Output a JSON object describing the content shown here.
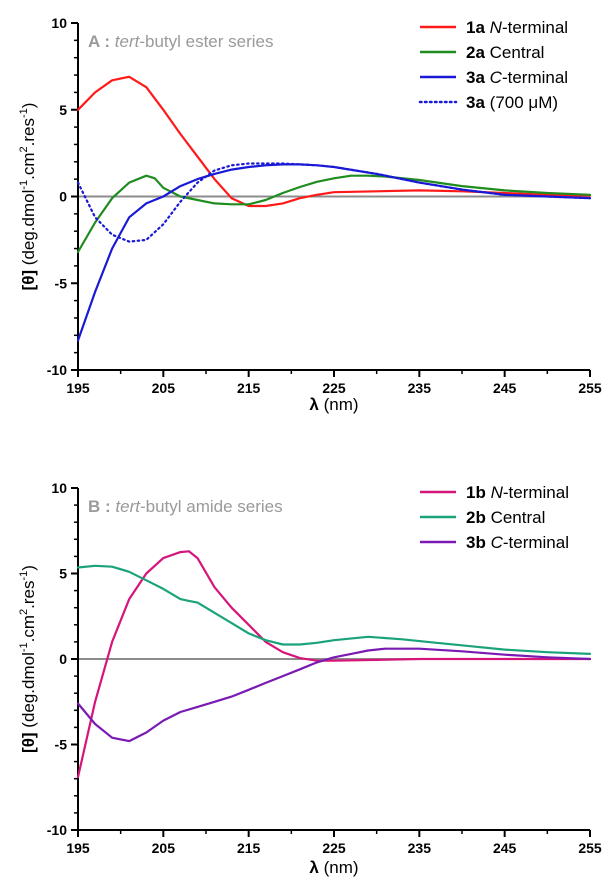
{
  "chart_data": [
    {
      "type": "line",
      "panel_letter": "A",
      "title_emphasis": "tert",
      "title_rest": "-butyl ester series",
      "xlabel_symbol": "λ",
      "xlabel_unit": "(nm)",
      "ylabel_symbol": "[θ]",
      "ylabel_unit": "(deg.dmol",
      "ylabel_sup1": "-1",
      "ylabel_mid": ".cm",
      "ylabel_sup2": "2",
      "ylabel_mid2": ".res",
      "ylabel_sup3": "-1",
      "ylabel_end": ")",
      "xlim": [
        195,
        255
      ],
      "ylim": [
        -10,
        10
      ],
      "xticks": [
        "195",
        "205",
        "215",
        "225",
        "235",
        "245",
        "255"
      ],
      "yticks": [
        "-10",
        "-5",
        "0",
        "5",
        "10"
      ],
      "zero_line": true,
      "legend_position": "top-right",
      "series": [
        {
          "name_bold": "1a",
          "name_italic": "N",
          "name_rest": "-terminal",
          "color": "#ff1a1a",
          "dash": "solid",
          "x": [
            195,
            197,
            199,
            201,
            203,
            205,
            207,
            209,
            211,
            213,
            215,
            217,
            219,
            221,
            223,
            225,
            230,
            235,
            240,
            245,
            250,
            255
          ],
          "y": [
            5.0,
            6.0,
            6.7,
            6.9,
            6.3,
            5.0,
            3.6,
            2.3,
            1.0,
            -0.1,
            -0.55,
            -0.55,
            -0.4,
            -0.1,
            0.1,
            0.25,
            0.3,
            0.35,
            0.3,
            0.2,
            0.1,
            0.05
          ]
        },
        {
          "name_bold": "2a",
          "name_italic": "",
          "name_rest": "Central",
          "color": "#1f8c1f",
          "dash": "solid",
          "x": [
            195,
            197,
            199,
            201,
            203,
            204,
            205,
            207,
            209,
            211,
            213,
            215,
            217,
            219,
            221,
            223,
            225,
            227,
            229,
            231,
            235,
            240,
            245,
            250,
            255
          ],
          "y": [
            -3.2,
            -1.5,
            -0.1,
            0.8,
            1.2,
            1.05,
            0.5,
            0.0,
            -0.2,
            -0.4,
            -0.45,
            -0.45,
            -0.2,
            0.2,
            0.55,
            0.85,
            1.05,
            1.2,
            1.2,
            1.15,
            0.95,
            0.6,
            0.35,
            0.2,
            0.1
          ]
        },
        {
          "name_bold": "3a",
          "name_italic": "C",
          "name_rest": "-terminal",
          "color": "#1a1ad6",
          "dash": "solid",
          "x": [
            195,
            197,
            199,
            201,
            203,
            205,
            207,
            209,
            211,
            213,
            215,
            217,
            219,
            221,
            223,
            225,
            230,
            235,
            240,
            245,
            250,
            255
          ],
          "y": [
            -8.3,
            -5.5,
            -3.0,
            -1.2,
            -0.4,
            0.0,
            0.6,
            1.0,
            1.3,
            1.55,
            1.7,
            1.8,
            1.85,
            1.85,
            1.8,
            1.7,
            1.3,
            0.8,
            0.4,
            0.1,
            0.0,
            -0.1
          ]
        },
        {
          "name_bold": "3a",
          "name_italic": "",
          "name_rest": "(700 μM)",
          "color": "#1a1ad6",
          "dash": "dotted",
          "x": [
            195,
            197,
            199,
            201,
            203,
            205,
            207,
            209,
            211,
            213,
            215,
            217,
            219,
            221,
            223,
            225,
            230,
            235,
            240,
            245,
            250,
            255
          ],
          "y": [
            0.8,
            -1.2,
            -2.2,
            -2.6,
            -2.5,
            -1.6,
            -0.3,
            0.8,
            1.5,
            1.8,
            1.9,
            1.9,
            1.9,
            1.85,
            1.8,
            1.7,
            1.3,
            0.8,
            0.4,
            0.1,
            0.0,
            -0.1
          ]
        }
      ]
    },
    {
      "type": "line",
      "panel_letter": "B",
      "title_emphasis": "tert",
      "title_rest": "-butyl amide series",
      "xlabel_symbol": "λ",
      "xlabel_unit": "(nm)",
      "ylabel_symbol": "[θ]",
      "ylabel_unit": "(deg.dmol",
      "ylabel_sup1": "-1",
      "ylabel_mid": ".cm",
      "ylabel_sup2": "2",
      "ylabel_mid2": ".res",
      "ylabel_sup3": "-1",
      "ylabel_end": ")",
      "xlim": [
        195,
        255
      ],
      "ylim": [
        -10,
        10
      ],
      "xticks": [
        "195",
        "205",
        "215",
        "225",
        "235",
        "245",
        "255"
      ],
      "yticks": [
        "-10",
        "-5",
        "0",
        "5",
        "10"
      ],
      "zero_line": true,
      "legend_position": "top-right",
      "series": [
        {
          "name_bold": "1b",
          "name_italic": "N",
          "name_rest": "-terminal",
          "color": "#d6157a",
          "dash": "solid",
          "x": [
            195,
            197,
            199,
            201,
            203,
            205,
            207,
            208,
            209,
            211,
            213,
            215,
            217,
            219,
            221,
            223,
            225,
            230,
            235,
            240,
            245,
            250,
            255
          ],
          "y": [
            -6.9,
            -2.5,
            1.0,
            3.5,
            5.0,
            5.9,
            6.25,
            6.3,
            5.9,
            4.2,
            3.0,
            2.0,
            1.0,
            0.4,
            0.05,
            -0.1,
            -0.1,
            -0.05,
            0.0,
            0.0,
            0.0,
            0.0,
            0.0
          ]
        },
        {
          "name_bold": "2b",
          "name_italic": "",
          "name_rest": "Central",
          "color": "#1aa37a",
          "dash": "solid",
          "x": [
            195,
            197,
            199,
            201,
            203,
            205,
            207,
            208,
            209,
            211,
            213,
            215,
            217,
            219,
            221,
            223,
            225,
            229,
            233,
            237,
            241,
            245,
            250,
            255
          ],
          "y": [
            5.35,
            5.45,
            5.4,
            5.1,
            4.6,
            4.1,
            3.5,
            3.4,
            3.3,
            2.7,
            2.1,
            1.5,
            1.1,
            0.85,
            0.85,
            0.95,
            1.1,
            1.3,
            1.15,
            0.95,
            0.75,
            0.55,
            0.4,
            0.3
          ]
        },
        {
          "name_bold": "3b",
          "name_italic": "C",
          "name_rest": "-terminal",
          "color": "#7a1ab3",
          "dash": "solid",
          "x": [
            195,
            197,
            199,
            201,
            203,
            205,
            207,
            209,
            211,
            213,
            215,
            217,
            219,
            221,
            223,
            225,
            227,
            229,
            231,
            235,
            240,
            245,
            250,
            255
          ],
          "y": [
            -2.6,
            -3.8,
            -4.6,
            -4.8,
            -4.3,
            -3.6,
            -3.1,
            -2.8,
            -2.5,
            -2.2,
            -1.8,
            -1.4,
            -1.0,
            -0.6,
            -0.2,
            0.1,
            0.3,
            0.5,
            0.6,
            0.6,
            0.45,
            0.25,
            0.1,
            0.0
          ]
        }
      ]
    }
  ]
}
